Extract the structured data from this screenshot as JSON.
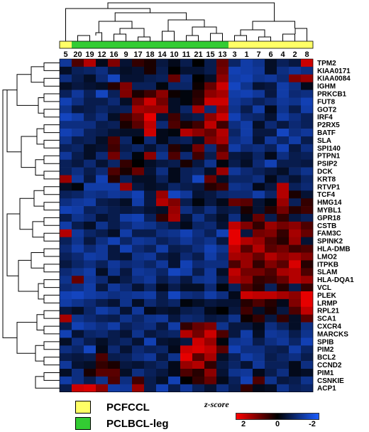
{
  "chart_data": {
    "type": "heatmap",
    "columns": [
      "5",
      "20",
      "19",
      "12",
      "16",
      "9",
      "17",
      "18",
      "14",
      "10",
      "11",
      "21",
      "15",
      "13",
      "3",
      "1",
      "7",
      "6",
      "4",
      "2",
      "8"
    ],
    "column_groups": [
      "PCFCCL",
      "PCLBCL-leg",
      "PCLBCL-leg",
      "PCLBCL-leg",
      "PCLBCL-leg",
      "PCLBCL-leg",
      "PCLBCL-leg",
      "PCLBCL-leg",
      "PCLBCL-leg",
      "PCLBCL-leg",
      "PCLBCL-leg",
      "PCLBCL-leg",
      "PCLBCL-leg",
      "PCLBCL-leg",
      "PCFCCL",
      "PCFCCL",
      "PCFCCL",
      "PCFCCL",
      "PCFCCL",
      "PCFCCL",
      "PCFCCL"
    ],
    "rows": [
      "TPM2",
      "KIAA0171",
      "KIAA0084",
      "IGHM",
      "PRKCB1",
      "FUT8",
      "GOT2",
      "IRF4",
      "P2RX5",
      "BATF",
      "SLA",
      "SPI140",
      "PTPN1",
      "PSIP2",
      "DCK",
      "KRT8",
      "RTVP1",
      "TCF4",
      "HMG14",
      "MYBL1",
      "GPR18",
      "CSTB",
      "FAM3C",
      "SPINK2",
      "HLA-DMB",
      "LMO2",
      "ITPKB",
      "SLAM",
      "HLA-DQA1",
      "VCL",
      "PLEK",
      "LRMP",
      "RPL21",
      "SCA1",
      "CXCR4",
      "MARCKS",
      "SPIB",
      "PIM2",
      "BCL2",
      "CCND2",
      "PIM1",
      "CSNKIE",
      "ACP1"
    ],
    "values": [
      [
        -1.2,
        0.6,
        1.4,
        -0.2,
        1.0,
        -0.4,
        0.4,
        0.2,
        -0.5,
        -0.2,
        -0.6,
        0.0,
        -0.6,
        0.8,
        -0.8,
        -1.3,
        -1.1,
        -0.3,
        -0.7,
        -0.5,
        1.6
      ],
      [
        -0.3,
        -0.7,
        -0.8,
        -1.0,
        -0.5,
        -0.3,
        -0.4,
        0.2,
        -0.6,
        0.0,
        -0.4,
        -0.4,
        -0.6,
        0.9,
        -1.4,
        -1.3,
        -1.2,
        -0.3,
        -1.0,
        -1.2,
        -1.0
      ],
      [
        -1.0,
        -0.6,
        -0.3,
        -0.9,
        -1.5,
        -0.4,
        -0.4,
        -0.6,
        -0.7,
        0.8,
        -0.9,
        0.0,
        -0.3,
        1.1,
        -1.3,
        -1.4,
        -1.1,
        -1.2,
        -0.9,
        1.0,
        1.2
      ],
      [
        -0.3,
        -0.5,
        -0.4,
        -0.3,
        0.3,
        1.0,
        -0.7,
        -0.7,
        -0.1,
        -0.8,
        -0.8,
        0.1,
        0.8,
        1.6,
        -1.5,
        -1.1,
        -0.4,
        -0.5,
        -1.3,
        -1.0,
        -0.2
      ],
      [
        -0.7,
        -1.2,
        -0.7,
        -1.5,
        -0.7,
        1.0,
        0.2,
        0.5,
        1.1,
        0.1,
        -0.1,
        0.3,
        1.1,
        1.3,
        -1.3,
        -1.4,
        -1.2,
        -0.5,
        -1.3,
        -0.9,
        -1.0
      ],
      [
        -1.4,
        -1.0,
        -0.6,
        -0.6,
        -0.9,
        -0.3,
        0.9,
        1.6,
        0.9,
        -0.3,
        -0.1,
        0.4,
        1.6,
        1.6,
        -1.2,
        -1.0,
        -0.7,
        -0.9,
        -1.2,
        -1.1,
        -1.4
      ],
      [
        -1.1,
        -0.5,
        -0.6,
        -0.8,
        -0.6,
        -0.7,
        1.3,
        1.2,
        1.2,
        -0.3,
        -0.8,
        1.3,
        -0.9,
        1.2,
        -1.1,
        -0.6,
        -1.3,
        -0.2,
        -1.1,
        -0.6,
        -1.3
      ],
      [
        -1.5,
        -1.3,
        -0.7,
        -1.0,
        -0.3,
        0.5,
        0.9,
        1.8,
        -0.4,
        0.5,
        -0.5,
        -0.6,
        1.1,
        1.6,
        -1.4,
        -0.9,
        -0.8,
        -0.4,
        -1.3,
        -1.0,
        -0.7
      ],
      [
        -1.0,
        -1.0,
        -1.0,
        -0.6,
        -0.7,
        0.2,
        0.7,
        1.5,
        -0.9,
        0.6,
        0.2,
        0.5,
        1.5,
        0.5,
        -1.0,
        -1.3,
        -0.3,
        -0.9,
        -0.5,
        -0.9,
        -0.7
      ],
      [
        -1.4,
        -1.2,
        -0.7,
        -0.6,
        -0.4,
        -0.3,
        -0.3,
        1.6,
        -0.2,
        -0.1,
        1.4,
        1.1,
        0.8,
        1.4,
        -0.8,
        -1.3,
        -0.5,
        -0.5,
        -1.5,
        -1.0,
        -1.2
      ],
      [
        -1.1,
        -0.6,
        -0.7,
        -0.3,
        0.6,
        -0.8,
        0.0,
        -0.9,
        -0.2,
        -0.6,
        -0.7,
        -0.3,
        1.0,
        1.3,
        -1.0,
        -1.2,
        -0.4,
        -1.2,
        -0.8,
        -1.3,
        -0.6
      ],
      [
        -0.7,
        -0.8,
        -0.3,
        -0.4,
        0.5,
        -0.6,
        -0.8,
        -0.4,
        -0.8,
        0.3,
        -0.2,
        0.9,
        -0.9,
        0.6,
        -1.3,
        -0.9,
        -1.0,
        -0.7,
        -1.4,
        -0.5,
        -1.0
      ],
      [
        -1.2,
        -0.6,
        -0.3,
        -0.9,
        0.9,
        -0.8,
        -0.1,
        1.1,
        -1.1,
        0.6,
        -0.9,
        0.5,
        -0.6,
        1.0,
        -0.5,
        -0.4,
        -0.8,
        -0.2,
        -1.0,
        -0.6,
        -0.7
      ],
      [
        -0.7,
        -0.5,
        -0.9,
        -0.4,
        -0.8,
        0.4,
        0.0,
        -0.3,
        -0.5,
        -0.6,
        0.2,
        -0.5,
        -1.1,
        -0.1,
        -0.6,
        -0.3,
        -0.9,
        -1.4,
        -0.6,
        -0.6,
        -0.5
      ],
      [
        -0.7,
        -1.0,
        -0.6,
        -0.9,
        0.6,
        0.2,
        0.8,
        -0.4,
        -1.0,
        -0.2,
        -0.7,
        -0.8,
        -0.3,
        1.2,
        -1.2,
        -0.9,
        -0.7,
        -0.5,
        -0.3,
        -0.8,
        -1.1
      ],
      [
        1.2,
        -1.2,
        -0.5,
        -1.4,
        0.3,
        -0.7,
        -0.3,
        -0.3,
        -0.7,
        -0.2,
        -0.7,
        -1.5,
        0.8,
        -0.3,
        -0.8,
        -0.8,
        -1.0,
        -0.2,
        -0.7,
        -0.4,
        -0.8
      ],
      [
        -0.3,
        -0.1,
        -1.3,
        -1.3,
        -1.3,
        1.2,
        -0.5,
        -0.3,
        -0.4,
        -0.8,
        -0.6,
        -0.5,
        0.3,
        0.5,
        -1.1,
        -1.0,
        -0.2,
        -0.5,
        1.4,
        -0.7,
        -0.9
      ],
      [
        -0.7,
        -0.8,
        -1.1,
        -1.0,
        -1.2,
        -1.1,
        -1.4,
        -0.5,
        1.2,
        -1.5,
        -1.2,
        -0.4,
        -0.5,
        -0.8,
        -0.9,
        -0.9,
        -1.3,
        -0.8,
        1.4,
        0.2,
        -0.4
      ],
      [
        -1.0,
        -1.2,
        -1.3,
        -0.6,
        -0.5,
        -0.3,
        -1.3,
        -0.5,
        1.4,
        1.0,
        -0.6,
        -0.1,
        -0.5,
        -0.2,
        0.8,
        0.7,
        -0.4,
        -0.1,
        1.2,
        -0.7,
        0.4
      ],
      [
        -1.4,
        -1.3,
        -0.7,
        -0.8,
        -0.6,
        -0.5,
        -0.6,
        -0.4,
        -0.3,
        1.2,
        -1.0,
        -0.6,
        -1.0,
        -0.5,
        -0.6,
        0.2,
        -0.4,
        0.3,
        0.9,
        0.3,
        0.5
      ],
      [
        -0.6,
        -1.1,
        -0.9,
        -0.4,
        -0.6,
        -1.3,
        -1.4,
        -0.7,
        0.4,
        1.3,
        -0.4,
        -1.1,
        -0.6,
        -0.3,
        -1.0,
        -0.2,
        0.8,
        -0.6,
        0.4,
        -0.5,
        -0.7
      ],
      [
        -1.3,
        -0.6,
        -0.3,
        -1.1,
        -0.6,
        -0.9,
        -1.2,
        -1.1,
        -0.8,
        -0.5,
        -0.2,
        -0.8,
        -0.9,
        -0.4,
        1.5,
        1.0,
        0.4,
        1.2,
        0.9,
        1.1,
        0.6
      ],
      [
        1.4,
        -1.2,
        -0.8,
        -0.6,
        -0.3,
        -1.3,
        -0.6,
        -0.6,
        -1.0,
        -1.1,
        -1.4,
        -1.0,
        -0.7,
        -1.4,
        1.8,
        -0.5,
        0.9,
        1.0,
        0.4,
        1.3,
        0.8
      ],
      [
        -0.7,
        -1.1,
        -0.5,
        -1.0,
        -1.4,
        -0.8,
        -1.2,
        -1.1,
        -0.7,
        -0.9,
        -1.2,
        -0.9,
        -1.1,
        -0.5,
        1.8,
        1.4,
        1.2,
        0.6,
        0.3,
        1.2,
        -0.4
      ],
      [
        -0.9,
        -1.3,
        -0.9,
        -1.2,
        -0.5,
        -1.4,
        -0.9,
        -0.7,
        -1.3,
        -0.6,
        -0.7,
        -1.0,
        -1.4,
        -1.1,
        1.5,
        0.7,
        1.4,
        0.7,
        0.9,
        0.5,
        0.6
      ],
      [
        -0.7,
        -0.9,
        -1.3,
        -1.2,
        -0.5,
        -0.4,
        -1.1,
        -1.2,
        -0.6,
        -0.4,
        -0.9,
        -0.6,
        -1.3,
        -0.9,
        1.3,
        1.2,
        0.8,
        1.4,
        1.1,
        1.3,
        1.0
      ],
      [
        -0.5,
        -0.8,
        -1.0,
        -0.7,
        -1.2,
        -0.9,
        -1.0,
        -0.8,
        -1.2,
        -0.4,
        -1.4,
        -0.9,
        -1.0,
        -1.0,
        0.6,
        1.2,
        0.4,
        1.0,
        0.7,
        1.7,
        0.3
      ],
      [
        -0.9,
        -1.1,
        -1.3,
        -0.3,
        -1.1,
        -0.5,
        -1.2,
        -1.1,
        -0.8,
        -1.5,
        -1.3,
        -0.6,
        -1.2,
        -0.3,
        1.5,
        0.9,
        0.9,
        0.6,
        1.3,
        1.4,
        0.6
      ],
      [
        -1.1,
        0.8,
        -1.2,
        -0.9,
        -0.3,
        -0.6,
        -1.0,
        -1.2,
        -0.6,
        -0.9,
        -0.5,
        -1.1,
        -1.2,
        -0.6,
        1.3,
        1.1,
        0.4,
        0.5,
        0.8,
        1.4,
        1.2
      ],
      [
        -0.9,
        -1.0,
        -1.3,
        -0.5,
        -1.2,
        -0.9,
        -0.4,
        -0.8,
        -0.2,
        -0.6,
        -0.3,
        -0.3,
        -0.9,
        -0.1,
        -0.7,
        0.6,
        0.3,
        -0.7,
        0.3,
        -0.6,
        0.4
      ],
      [
        -1.4,
        -1.5,
        -1.3,
        -1.2,
        -1.0,
        -1.1,
        -1.2,
        -1.3,
        -0.6,
        -1.5,
        -1.0,
        -0.9,
        -1.3,
        -1.0,
        -0.2,
        1.6,
        1.5,
        1.5,
        1.3,
        1.1,
        1.8
      ],
      [
        -1.3,
        -1.1,
        -0.9,
        -0.6,
        -0.4,
        -1.1,
        -0.3,
        -0.9,
        -0.6,
        -0.8,
        -0.1,
        -0.3,
        -0.5,
        -0.4,
        -0.4,
        0.3,
        0.6,
        0.3,
        -0.2,
        1.0,
        1.8
      ],
      [
        -0.5,
        -0.3,
        -0.8,
        -1.3,
        -1.1,
        -0.4,
        -1.2,
        -0.2,
        -0.4,
        -0.3,
        -0.6,
        -0.7,
        -0.2,
        0.0,
        -0.5,
        0.5,
        -0.3,
        0.2,
        -0.5,
        0.6,
        1.5
      ],
      [
        1.3,
        -1.1,
        -0.9,
        -0.7,
        -0.6,
        -1.1,
        -0.8,
        -1.1,
        -1.2,
        -0.5,
        -0.9,
        -0.8,
        -0.5,
        -0.6,
        -1.1,
        0.1,
        0.4,
        -0.5,
        0.4,
        -0.3,
        0.7
      ],
      [
        -0.6,
        -1.4,
        -1.2,
        -1.0,
        -1.3,
        -0.7,
        -0.9,
        -1.0,
        -0.5,
        -1.3,
        0.4,
        0.8,
        1.0,
        -1.1,
        -0.5,
        -0.5,
        -0.2,
        -1.0,
        -0.7,
        -0.3,
        -1.0
      ],
      [
        -1.4,
        -0.4,
        -0.8,
        -0.9,
        -0.6,
        -0.4,
        -1.1,
        -0.5,
        -0.7,
        -0.8,
        1.4,
        0.9,
        1.6,
        0.6,
        -0.5,
        -1.3,
        -0.3,
        -1.2,
        -1.1,
        -0.6,
        -1.1
      ],
      [
        -0.3,
        -1.0,
        -0.6,
        -0.3,
        -0.6,
        -0.8,
        -0.4,
        -1.4,
        -0.4,
        -0.3,
        -0.5,
        1.6,
        1.2,
        -0.1,
        -1.1,
        -1.2,
        -0.6,
        -1.0,
        -1.2,
        -0.8,
        -1.4
      ],
      [
        -1.0,
        -0.8,
        -1.5,
        -0.2,
        -0.9,
        -0.4,
        -0.9,
        -0.7,
        -0.8,
        -0.2,
        1.6,
        1.7,
        1.5,
        0.7,
        -1.4,
        -1.0,
        -1.0,
        -0.7,
        -0.6,
        -1.3,
        -0.8
      ],
      [
        -0.6,
        -0.5,
        -0.6,
        0.6,
        -0.6,
        -0.7,
        -1.0,
        -1.2,
        -0.5,
        -1.1,
        1.8,
        0.7,
        1.3,
        -0.3,
        -0.7,
        -1.3,
        -1.1,
        -0.6,
        -0.8,
        -1.0,
        -0.6
      ],
      [
        -1.2,
        -0.4,
        -0.3,
        0.4,
        0.2,
        -0.5,
        -0.4,
        -0.6,
        -0.8,
        -0.2,
        1.2,
        1.4,
        0.4,
        -0.5,
        -0.8,
        -0.4,
        -1.2,
        -0.7,
        -0.7,
        -0.2,
        -1.0
      ],
      [
        -0.3,
        -1.0,
        0.2,
        0.7,
        0.7,
        -0.3,
        -1.0,
        -0.7,
        -0.5,
        -0.2,
        0.6,
        0.3,
        1.1,
        -0.4,
        -1.1,
        -1.2,
        -0.2,
        -0.6,
        -1.0,
        -0.2,
        -0.3
      ],
      [
        -1.3,
        -1.0,
        -0.6,
        -1.1,
        0.6,
        -1.0,
        0.5,
        -0.6,
        -0.3,
        -1.4,
        0.0,
        0.4,
        0.8,
        -0.2,
        -0.7,
        -1.4,
        0.6,
        -1.1,
        -0.5,
        -0.6,
        -1.1
      ],
      [
        -0.6,
        1.6,
        1.7,
        1.1,
        -1.3,
        -1.2,
        1.2,
        -0.6,
        -1.4,
        -0.6,
        -1.2,
        -0.7,
        -0.4,
        -1.0,
        -0.6,
        0.4,
        -0.2,
        -0.3,
        -1.1,
        -0.7,
        -0.8
      ]
    ],
    "color_scale": {
      "min": -2,
      "mid": 0,
      "max": 2,
      "min_color": "#1a5cff",
      "mid_color": "#000000",
      "max_color": "#ff0000"
    },
    "colorbar_title": "z-score",
    "colorbar_ticks": [
      "2",
      "0",
      "-2"
    ],
    "group_colors": {
      "PCFCCL": "#ffff66",
      "PCLBCL-leg": "#33cc33"
    }
  },
  "legend": [
    {
      "label": "PCFCCL",
      "color": "#ffff66"
    },
    {
      "label": "PCLBCL-leg",
      "color": "#33cc33"
    }
  ]
}
